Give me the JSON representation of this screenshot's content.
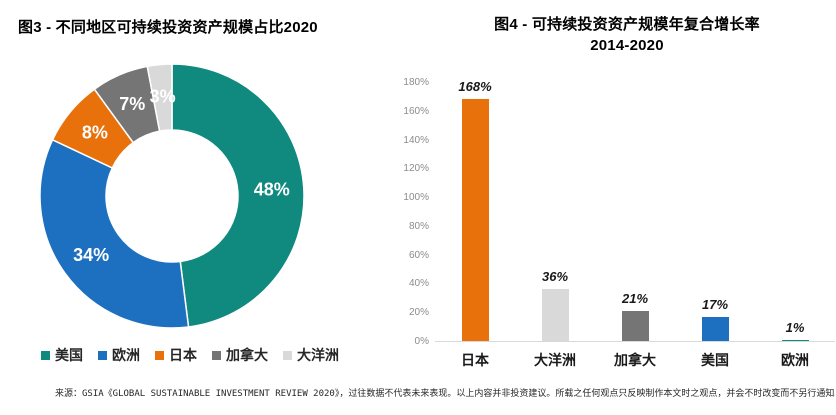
{
  "left_chart": {
    "title": "图3 - 不同地区可持续投资资产规模占比2020"
  },
  "right_chart": {
    "title_line1": "图4 - 可持续投资资产规模年复合增长率",
    "title_line2": "2014-2020"
  },
  "footer": "来源：GSIA《GLOBAL SUSTAINABLE INVESTMENT REVIEW 2020》，过往数据不代表未来表现。以上内容并非投资建议。所载之任何观点只反映制作本文时之观点，并会不时改变而不另行通知。",
  "palette": {
    "teal": "#10897F",
    "blue": "#1D70C0",
    "orange": "#E8710C",
    "dark_gray": "#757575",
    "light_gray": "#D9D9D9",
    "axis_label_gray": "#8C8C8C",
    "baseline_gray": "#D9D9D9",
    "pie_label_white": "#FFFFFF",
    "text_black": "#1A1A1A"
  },
  "chart_data": [
    {
      "type": "pie",
      "donut": true,
      "title": "图3 - 不同地区可持续投资资产规模占比2020",
      "labels": [
        "美国",
        "欧洲",
        "日本",
        "加拿大",
        "大洋洲"
      ],
      "values": [
        48,
        34,
        8,
        7,
        3
      ],
      "data_labels": [
        "48%",
        "34%",
        "8%",
        "7%",
        "3%"
      ],
      "colors": [
        "#10897F",
        "#1D70C0",
        "#E8710C",
        "#757575",
        "#D9D9D9"
      ],
      "start_angle_deg": 0,
      "direction": "clockwise",
      "legend_position": "bottom"
    },
    {
      "type": "bar",
      "title": "图4 - 可持续投资资产规模年复合增长率 2014-2020",
      "categories": [
        "日本",
        "大洋洲",
        "加拿大",
        "美国",
        "欧洲"
      ],
      "values": [
        168,
        36,
        21,
        17,
        1
      ],
      "data_labels": [
        "168%",
        "36%",
        "21%",
        "17%",
        "1%"
      ],
      "bar_colors": [
        "#E8710C",
        "#D9D9D9",
        "#757575",
        "#1D70C0",
        "#10897F"
      ],
      "xlabel": "",
      "ylabel": "",
      "ylim": [
        0,
        180
      ],
      "ytick_step": 20,
      "ytick_suffix": "%",
      "grid": false,
      "legend_position": "none"
    }
  ]
}
